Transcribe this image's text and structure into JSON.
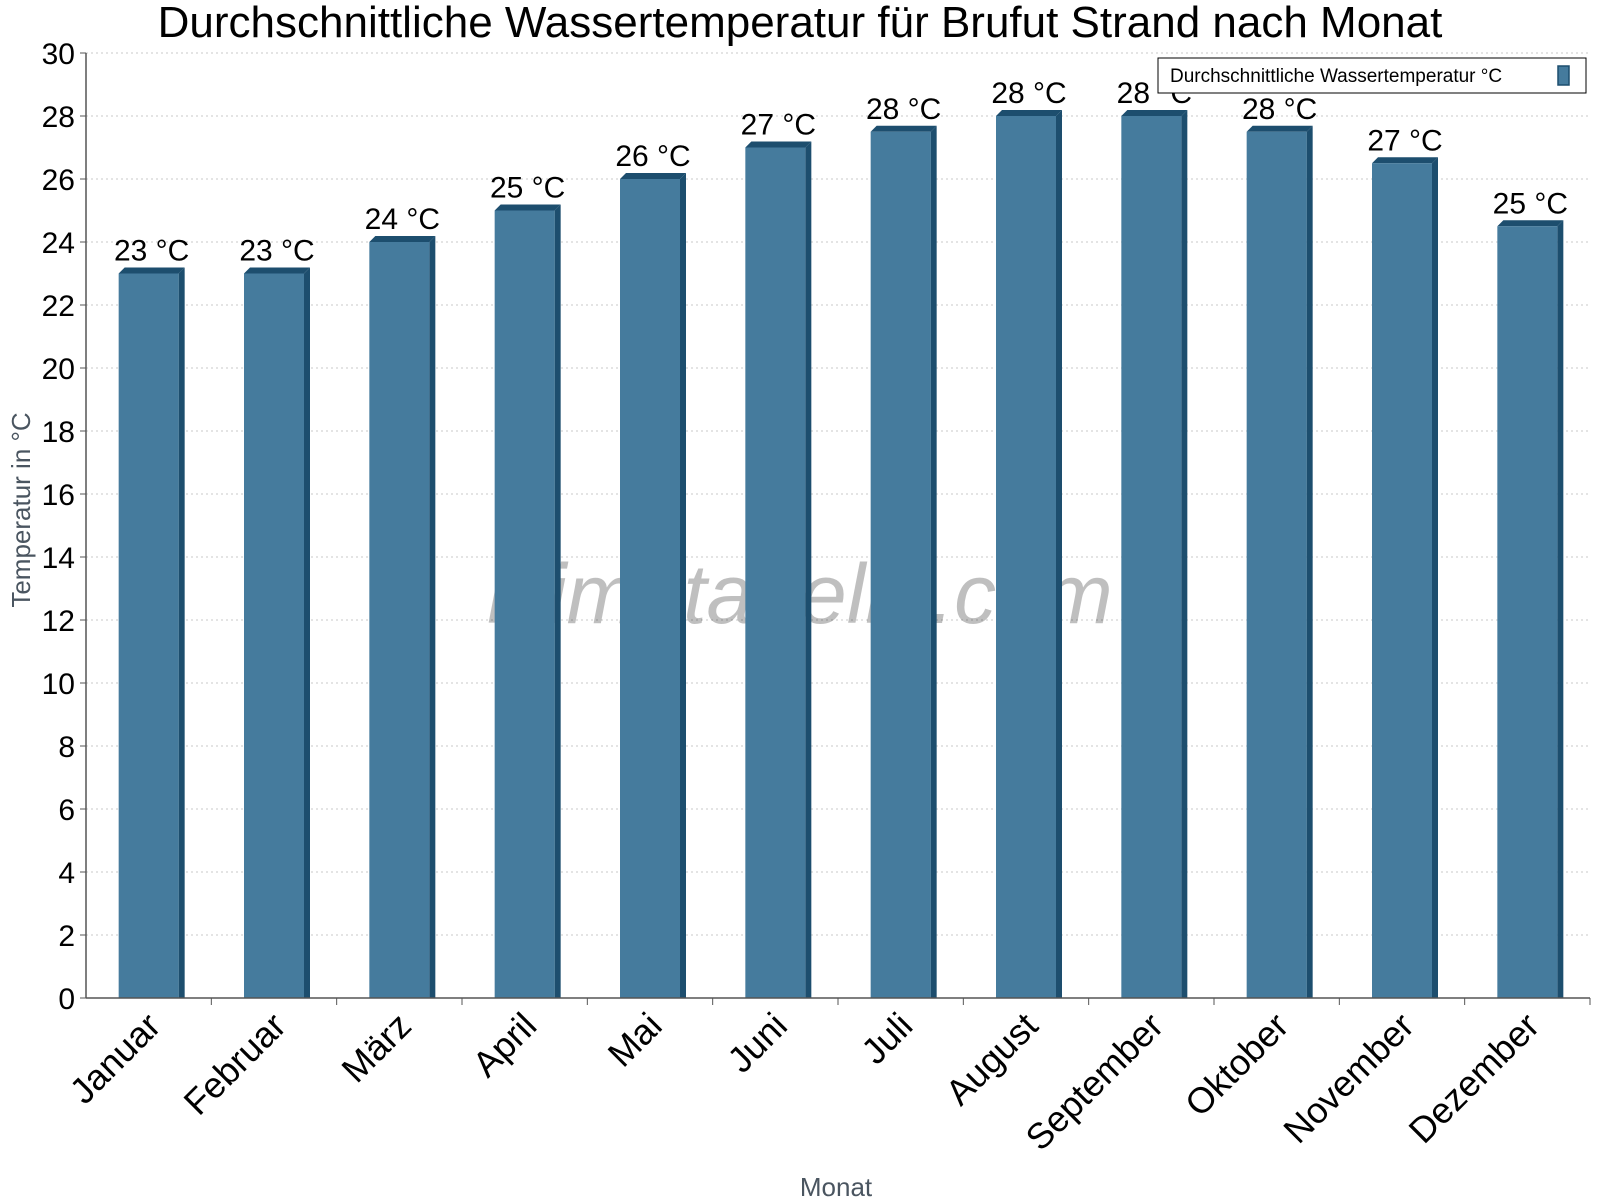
{
  "chart_data": {
    "type": "bar",
    "title": "Durchschnittliche Wassertemperatur für Brufut Strand nach Monat",
    "xlabel": "Monat",
    "ylabel": "Temperatur in °C",
    "ylim": [
      0,
      30
    ],
    "yticks": [
      0,
      2,
      4,
      6,
      8,
      10,
      12,
      14,
      16,
      18,
      20,
      22,
      24,
      26,
      28,
      30
    ],
    "grid": true,
    "legend_position": "top-right",
    "categories": [
      "Januar",
      "Februar",
      "März",
      "April",
      "Mai",
      "Juni",
      "Juli",
      "August",
      "September",
      "Oktober",
      "November",
      "Dezember"
    ],
    "series": [
      {
        "name": "Durchschnittliche Wassertemperatur °C",
        "values": [
          23,
          23,
          24,
          25,
          26,
          27,
          27.5,
          28,
          28,
          27.5,
          26.5,
          24.5
        ],
        "labels": [
          "23 °C",
          "23 °C",
          "24 °C",
          "25 °C",
          "26 °C",
          "27 °C",
          "28 °C",
          "28 °C",
          "28 °C",
          "28 °C",
          "27 °C",
          "25 °C"
        ],
        "color": "#457b9d",
        "edge_color": "#1d4e6e"
      }
    ],
    "watermark": "klimatabelle.com"
  }
}
